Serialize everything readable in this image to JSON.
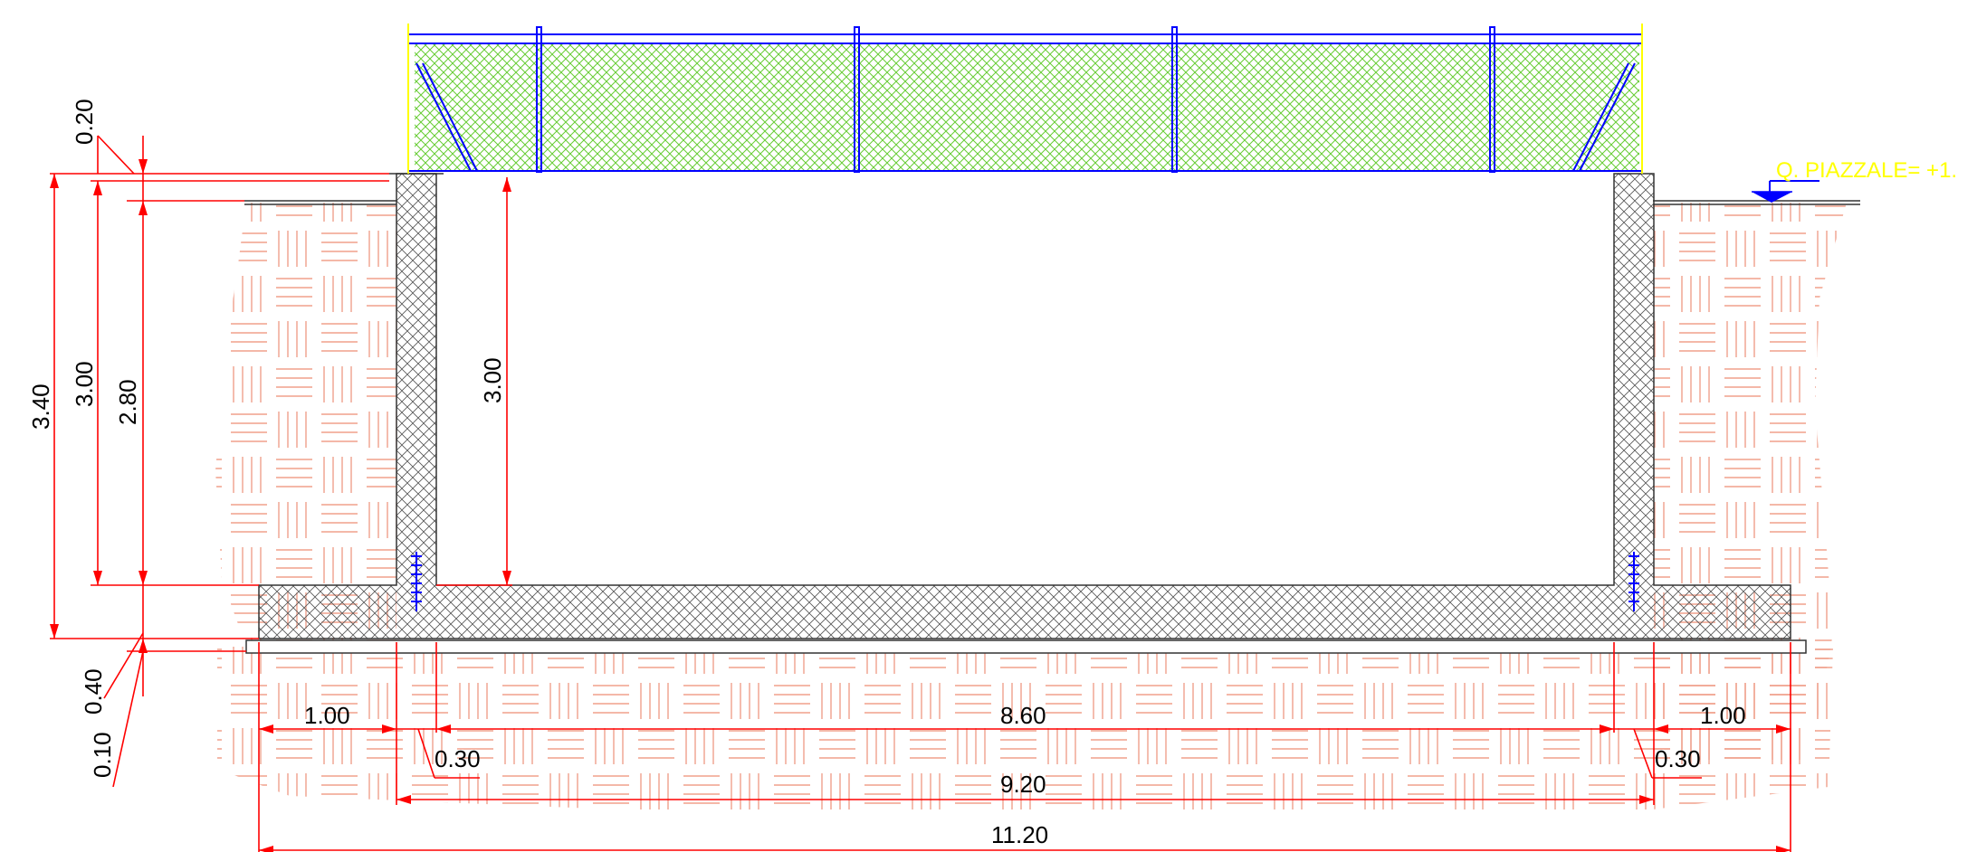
{
  "drawing": {
    "level_label": "Q. PIAZZALE= +1.",
    "dimensions": {
      "overall_width": "11.20",
      "inner_axis_width": "9.20",
      "inner_clear_width": "8.60",
      "left_toe": "1.00",
      "right_toe": "1.00",
      "left_wall_thickness": "0.30",
      "right_wall_thickness": "0.30",
      "total_height": "3.40",
      "wall_height": "3.00",
      "inner_height": "2.80",
      "top_offset": "0.20",
      "slab_thickness": "0.40",
      "lean_concrete": "0.10",
      "clear_height": "3.00"
    }
  },
  "colors": {
    "dimension_lines": "#ff0000",
    "soil_hatch": "#f0a08c",
    "fence_mesh": "#66cc33",
    "fence_frame": "#0000ff",
    "concrete_outline": "#333333",
    "level_label": "#ffff00"
  }
}
